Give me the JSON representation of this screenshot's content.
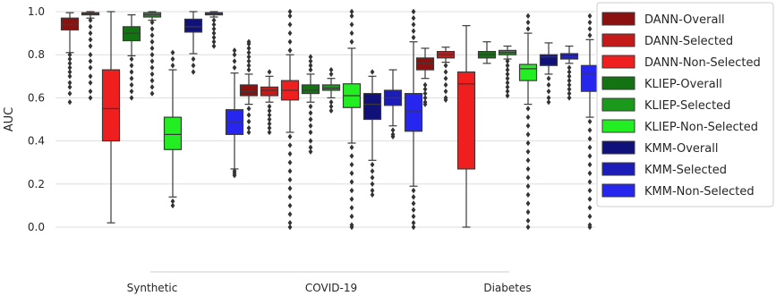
{
  "chart_data": {
    "type": "box",
    "title": "",
    "xlabel": "",
    "ylabel": "AUC",
    "ylim": [
      0.0,
      1.0
    ],
    "yticks": [
      0.0,
      0.2,
      0.4,
      0.6,
      0.8,
      1.0
    ],
    "ytick_labels": [
      "0.0",
      "0.2",
      "0.4",
      "0.6",
      "0.8",
      "1.0"
    ],
    "grid": "horizontal",
    "legend_position": "right",
    "categories": [
      "Synthetic",
      "COVID-19",
      "Diabetes"
    ],
    "series": [
      {
        "name": "DANN-Overall",
        "color": "#8b1111",
        "boxes": [
          {
            "q1": 0.915,
            "median": 0.94,
            "q3": 0.97,
            "whislo": 0.81,
            "whishi": 0.995,
            "fliers": [
              0.8,
              0.78,
              0.76,
              0.74,
              0.72,
              0.7,
              0.67,
              0.65,
              0.62,
              0.58
            ]
          },
          {
            "q1": 0.61,
            "median": 0.63,
            "q3": 0.66,
            "whislo": 0.57,
            "whishi": 0.71,
            "fliers": [
              0.73,
              0.75,
              0.77,
              0.79,
              0.81,
              0.83,
              0.85,
              0.86,
              0.55,
              0.52,
              0.49,
              0.46,
              0.44
            ]
          },
          {
            "q1": 0.73,
            "median": 0.76,
            "q3": 0.785,
            "whislo": 0.69,
            "whishi": 0.83,
            "fliers": [
              0.66,
              0.64,
              0.62,
              0.6,
              0.58,
              0.57
            ]
          }
        ]
      },
      {
        "name": "DANN-Selected",
        "color": "#c41a1a",
        "boxes": [
          {
            "q1": 0.985,
            "median": 0.99,
            "q3": 0.995,
            "whislo": 0.97,
            "whishi": 1.0,
            "fliers": [
              0.96,
              0.93,
              0.9,
              0.87,
              0.84,
              0.8,
              0.77,
              0.74,
              0.7,
              0.67,
              0.63,
              0.6
            ]
          },
          {
            "q1": 0.61,
            "median": 0.635,
            "q3": 0.65,
            "whislo": 0.58,
            "whishi": 0.7,
            "fliers": [
              0.72,
              0.56,
              0.54,
              0.52,
              0.5,
              0.48,
              0.46,
              0.44
            ]
          },
          {
            "q1": 0.785,
            "median": 0.8,
            "q3": 0.815,
            "whislo": 0.765,
            "whishi": 0.835,
            "fliers": [
              0.75,
              0.72,
              0.69,
              0.66,
              0.63,
              0.6,
              0.59
            ]
          }
        ]
      },
      {
        "name": "DANN-Non-Selected",
        "color": "#f01f1f",
        "boxes": [
          {
            "q1": 0.4,
            "median": 0.55,
            "q3": 0.73,
            "whislo": 0.02,
            "whishi": 1.0,
            "fliers": []
          },
          {
            "q1": 0.59,
            "median": 0.635,
            "q3": 0.68,
            "whislo": 0.44,
            "whishi": 0.8,
            "fliers": [
              0.82,
              0.86,
              0.9,
              0.94,
              0.98,
              1.0,
              0.42,
              0.38,
              0.34,
              0.3,
              0.26,
              0.22,
              0.18,
              0.14,
              0.1,
              0.06,
              0.02,
              0.0
            ]
          },
          {
            "q1": 0.27,
            "median": 0.665,
            "q3": 0.72,
            "whislo": 0.0,
            "whishi": 0.935,
            "fliers": []
          }
        ]
      },
      {
        "name": "KLIEP-Overall",
        "color": "#137313",
        "boxes": [
          {
            "q1": 0.865,
            "median": 0.9,
            "q3": 0.93,
            "whislo": 0.795,
            "whishi": 0.985,
            "fliers": [
              0.78,
              0.75,
              0.72,
              0.69,
              0.66,
              0.63,
              0.6
            ]
          },
          {
            "q1": 0.62,
            "median": 0.635,
            "q3": 0.66,
            "whislo": 0.58,
            "whishi": 0.71,
            "fliers": [
              0.73,
              0.75,
              0.77,
              0.79,
              0.56,
              0.53,
              0.5,
              0.47,
              0.44,
              0.4,
              0.37,
              0.35
            ]
          },
          {
            "q1": 0.785,
            "median": 0.8,
            "q3": 0.815,
            "whislo": 0.76,
            "whishi": 0.86,
            "fliers": []
          }
        ]
      },
      {
        "name": "KLIEP-Selected",
        "color": "#1b991b",
        "boxes": [
          {
            "q1": 0.975,
            "median": 0.985,
            "q3": 0.995,
            "whislo": 0.96,
            "whishi": 1.0,
            "fliers": [
              0.95,
              0.92,
              0.89,
              0.86,
              0.83,
              0.8,
              0.77,
              0.74,
              0.71,
              0.68,
              0.65,
              0.62
            ]
          },
          {
            "q1": 0.635,
            "median": 0.645,
            "q3": 0.66,
            "whislo": 0.6,
            "whishi": 0.69,
            "fliers": [
              0.71,
              0.73,
              0.58,
              0.56,
              0.54
            ]
          },
          {
            "q1": 0.8,
            "median": 0.81,
            "q3": 0.82,
            "whislo": 0.78,
            "whishi": 0.84,
            "fliers": [
              0.77,
              0.75,
              0.73,
              0.71,
              0.69,
              0.67,
              0.65,
              0.63,
              0.61
            ]
          }
        ]
      },
      {
        "name": "KLIEP-Non-Selected",
        "color": "#22ee22",
        "boxes": [
          {
            "q1": 0.36,
            "median": 0.43,
            "q3": 0.51,
            "whislo": 0.14,
            "whishi": 0.73,
            "fliers": [
              0.75,
              0.78,
              0.81,
              0.12,
              0.1
            ]
          },
          {
            "q1": 0.555,
            "median": 0.61,
            "q3": 0.665,
            "whislo": 0.39,
            "whishi": 0.83,
            "fliers": [
              0.86,
              0.9,
              0.94,
              0.98,
              1.0,
              0.37,
              0.33,
              0.29,
              0.25,
              0.21,
              0.17,
              0.13,
              0.09,
              0.05,
              0.01,
              0.0
            ]
          },
          {
            "q1": 0.68,
            "median": 0.735,
            "q3": 0.755,
            "whislo": 0.57,
            "whishi": 0.9,
            "fliers": [
              0.92,
              0.95,
              0.98,
              0.55,
              0.51,
              0.47,
              0.43,
              0.39,
              0.35,
              0.31,
              0.27,
              0.23,
              0.19,
              0.15,
              0.11,
              0.07,
              0.03,
              0.0
            ]
          }
        ]
      },
      {
        "name": "KMM-Overall",
        "color": "#11117a",
        "boxes": [
          {
            "q1": 0.905,
            "median": 0.93,
            "q3": 0.965,
            "whislo": 0.805,
            "whishi": 1.0,
            "fliers": [
              0.78,
              0.75,
              0.72
            ]
          },
          {
            "q1": 0.5,
            "median": 0.57,
            "q3": 0.62,
            "whislo": 0.31,
            "whishi": 0.7,
            "fliers": [
              0.72,
              0.29,
              0.26,
              0.23,
              0.2,
              0.17,
              0.15
            ]
          },
          {
            "q1": 0.75,
            "median": 0.79,
            "q3": 0.8,
            "whislo": 0.71,
            "whishi": 0.855,
            "fliers": [
              0.69,
              0.66,
              0.63,
              0.6,
              0.58
            ]
          }
        ]
      },
      {
        "name": "KMM-Selected",
        "color": "#1c1cb8",
        "boxes": [
          {
            "q1": 0.985,
            "median": 0.99,
            "q3": 0.995,
            "whislo": 0.975,
            "whishi": 1.0,
            "fliers": [
              0.96,
              0.94,
              0.92,
              0.9,
              0.88,
              0.86,
              0.84
            ]
          },
          {
            "q1": 0.565,
            "median": 0.6,
            "q3": 0.635,
            "whislo": 0.47,
            "whishi": 0.73,
            "fliers": [
              0.45,
              0.43,
              0.42
            ]
          },
          {
            "q1": 0.78,
            "median": 0.79,
            "q3": 0.805,
            "whislo": 0.76,
            "whishi": 0.84,
            "fliers": [
              0.74,
              0.72,
              0.7,
              0.68,
              0.66,
              0.64,
              0.62,
              0.6
            ]
          }
        ]
      },
      {
        "name": "KMM-Non-Selected",
        "color": "#2626ee",
        "boxes": [
          {
            "q1": 0.43,
            "median": 0.49,
            "q3": 0.545,
            "whislo": 0.27,
            "whishi": 0.715,
            "fliers": [
              0.74,
              0.77,
              0.8,
              0.82,
              0.26,
              0.25,
              0.24
            ]
          },
          {
            "q1": 0.445,
            "median": 0.54,
            "q3": 0.62,
            "whislo": 0.19,
            "whishi": 0.86,
            "fliers": [
              0.88,
              0.91,
              0.94,
              0.97,
              1.0,
              0.17,
              0.14,
              0.11,
              0.08,
              0.05,
              0.02,
              0.0
            ]
          },
          {
            "q1": 0.63,
            "median": 0.715,
            "q3": 0.75,
            "whislo": 0.51,
            "whishi": 0.87,
            "fliers": [
              0.89,
              0.92,
              0.95,
              0.98,
              0.49,
              0.45,
              0.41,
              0.37,
              0.33,
              0.29,
              0.25,
              0.21,
              0.17,
              0.13,
              0.09,
              0.05,
              0.01,
              0.0
            ]
          }
        ]
      }
    ]
  }
}
